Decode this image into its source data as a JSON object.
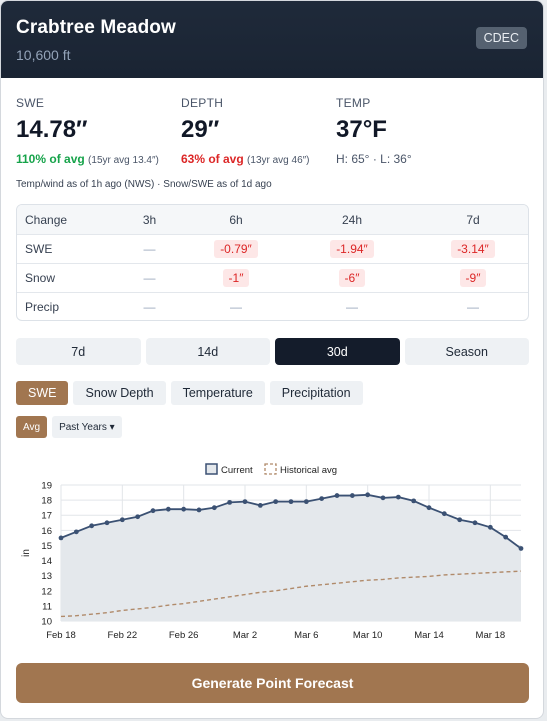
{
  "header": {
    "title": "Crabtree Meadow",
    "elevation": "10,600 ft",
    "source_badge": "CDEC"
  },
  "stats": {
    "swe": {
      "label": "SWE",
      "value": "14.78″",
      "pct": "110% of avg",
      "avg_note": "(15yr avg 13.4″)"
    },
    "depth": {
      "label": "DEPTH",
      "value": "29″",
      "pct": "63% of avg",
      "avg_note": "(13yr avg 46″)"
    },
    "temp": {
      "label": "TEMP",
      "value": "37°F",
      "hilo": "H: 65° · L: 36°"
    },
    "as_of": "Temp/wind as of 1h ago (NWS) · Snow/SWE as of 1d ago"
  },
  "change_table": {
    "headers": [
      "Change",
      "3h",
      "6h",
      "24h",
      "7d"
    ],
    "rows": [
      {
        "label": "SWE",
        "cells": [
          "—",
          "-0.79″",
          "-1.94″",
          "-3.14″"
        ]
      },
      {
        "label": "Snow",
        "cells": [
          "—",
          "-1″",
          "-6″",
          "-9″"
        ]
      },
      {
        "label": "Precip",
        "cells": [
          "—",
          "—",
          "—",
          "—"
        ]
      }
    ]
  },
  "ranges": [
    "7d",
    "14d",
    "30d",
    "Season"
  ],
  "active_range": "30d",
  "metric_tabs": [
    "SWE",
    "Snow Depth",
    "Temperature",
    "Precipitation"
  ],
  "active_metric": "SWE",
  "sub_buttons": {
    "avg": "Avg",
    "past_years": "Past Years ▾"
  },
  "cta_label": "Generate Point Forecast",
  "colors": {
    "accent": "#a17650",
    "dark": "#141c2b",
    "line": "#3b5173",
    "avg_line": "#b08a6a",
    "negative": "#dc2626",
    "positive": "#16a34a"
  },
  "chart_data": {
    "type": "line",
    "ylabel": "in",
    "ylim": [
      10,
      19
    ],
    "yticks": [
      10,
      11,
      12,
      13,
      14,
      15,
      16,
      17,
      18,
      19
    ],
    "x_tick_labels": [
      "Feb 18",
      "Feb 22",
      "Feb 26",
      "Mar 2",
      "Mar 6",
      "Mar 10",
      "Mar 14",
      "Mar 18"
    ],
    "legend": {
      "position": "top-center",
      "entries": [
        "Current",
        "Historical avg"
      ]
    },
    "grid": true,
    "series": [
      {
        "name": "Current",
        "style": "solid-markers-filled",
        "values": [
          15.5,
          15.9,
          16.3,
          16.5,
          16.7,
          16.9,
          17.3,
          17.4,
          17.4,
          17.35,
          17.5,
          17.85,
          17.9,
          17.65,
          17.9,
          17.9,
          17.9,
          18.1,
          18.3,
          18.3,
          18.35,
          18.15,
          18.2,
          17.95,
          17.5,
          17.1,
          16.7,
          16.5,
          16.2,
          15.55,
          14.8
        ]
      },
      {
        "name": "Historical avg",
        "style": "dashed",
        "values": [
          10.3,
          10.35,
          10.45,
          10.55,
          10.7,
          10.8,
          10.9,
          11.05,
          11.15,
          11.3,
          11.45,
          11.6,
          11.75,
          11.9,
          12.0,
          12.15,
          12.3,
          12.4,
          12.5,
          12.6,
          12.7,
          12.75,
          12.85,
          12.9,
          12.95,
          13.05,
          13.1,
          13.15,
          13.2,
          13.25,
          13.3
        ]
      }
    ]
  }
}
